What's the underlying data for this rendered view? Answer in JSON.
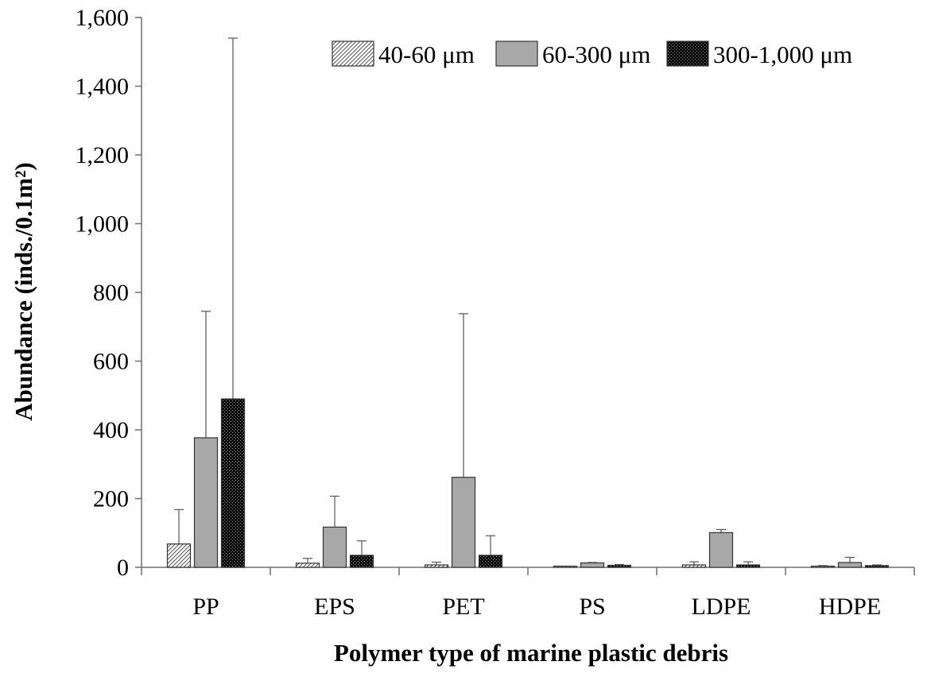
{
  "chart_data": {
    "type": "bar",
    "title": "",
    "xlabel": "Polymer type of marine plastic debris",
    "ylabel": "Abundance (inds./0.1m²)",
    "ylim": [
      0,
      1600
    ],
    "yticks": [
      0,
      200,
      400,
      600,
      800,
      1000,
      1200,
      1400,
      1600
    ],
    "ytick_labels": [
      "0",
      "200",
      "400",
      "600",
      "800",
      "1,000",
      "1,200",
      "1,400",
      "1,600"
    ],
    "categories": [
      "PP",
      "EPS",
      "PET",
      "PS",
      "LDPE",
      "HDPE"
    ],
    "series": [
      {
        "name": "40-60 μm",
        "values": [
          68,
          12,
          7,
          2,
          7,
          2
        ],
        "error_upper": [
          168,
          26,
          15,
          3,
          16,
          5
        ],
        "fill": "light-hatch"
      },
      {
        "name": "60-300 μm",
        "values": [
          377,
          117,
          262,
          13,
          101,
          14
        ],
        "error_upper": [
          745,
          207,
          738,
          14,
          110,
          29
        ],
        "fill": "gray"
      },
      {
        "name": "300-1,000 μm",
        "values": [
          490,
          35,
          35,
          6,
          7,
          5
        ],
        "error_upper": [
          1540,
          77,
          92,
          8,
          16,
          7
        ],
        "fill": "dark-checker"
      }
    ],
    "legend_position": "top-right",
    "grid": false
  },
  "colors": {
    "gray_fill": "#a8a8a8",
    "dark_fill": "#111111",
    "light_fill": "#ffffff",
    "axis": "#6e6e6e"
  }
}
